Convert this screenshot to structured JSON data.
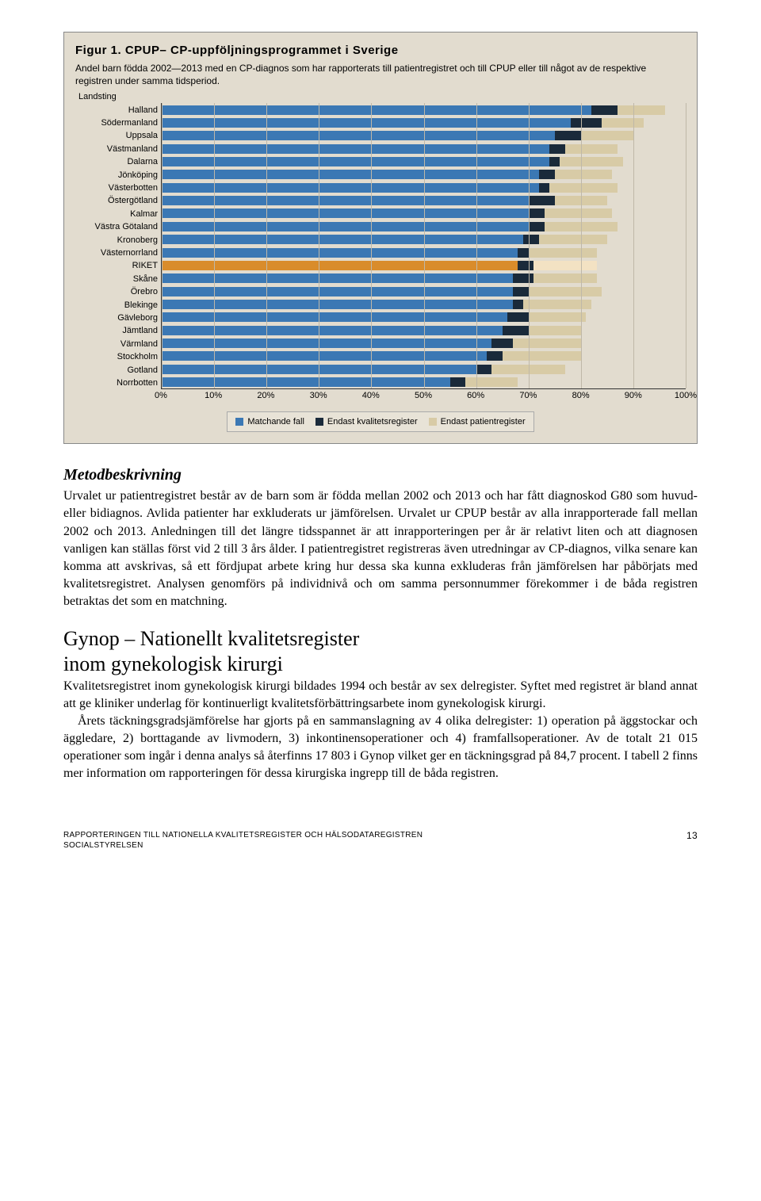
{
  "figure": {
    "title": "Figur 1. CPUP– CP-uppföljningsprogrammet i Sverige",
    "subtitle": "Andel barn födda 2002—2013 med en CP-diagnos som har rapporterats till patientregistret och till CPUP eller till något av de respektive registren under samma tidsperiod.",
    "y_axis_title": "Landsting",
    "series_colors": {
      "matched": "#3b78b4",
      "quality_only": "#1a2a3a",
      "patient_only": "#d8cba6",
      "riket_matched": "#d98c2b",
      "riket_patient": "#f3e2c3"
    },
    "background": "#e2dccf",
    "grid_color": "#bfb8a8",
    "categories": [
      {
        "label": "Halland",
        "m": 82,
        "q": 5,
        "p": 9
      },
      {
        "label": "Södermanland",
        "m": 78,
        "q": 6,
        "p": 8
      },
      {
        "label": "Uppsala",
        "m": 75,
        "q": 5,
        "p": 10
      },
      {
        "label": "Västmanland",
        "m": 74,
        "q": 3,
        "p": 10
      },
      {
        "label": "Dalarna",
        "m": 74,
        "q": 2,
        "p": 12
      },
      {
        "label": "Jönköping",
        "m": 72,
        "q": 3,
        "p": 11
      },
      {
        "label": "Västerbotten",
        "m": 72,
        "q": 2,
        "p": 13
      },
      {
        "label": "Östergötland",
        "m": 70,
        "q": 5,
        "p": 10
      },
      {
        "label": "Kalmar",
        "m": 70,
        "q": 3,
        "p": 13
      },
      {
        "label": "Västra Götaland",
        "m": 70,
        "q": 3,
        "p": 14
      },
      {
        "label": "Kronoberg",
        "m": 69,
        "q": 3,
        "p": 13
      },
      {
        "label": "Västernorrland",
        "m": 68,
        "q": 2,
        "p": 13
      },
      {
        "label": "RIKET",
        "m": 68,
        "q": 3,
        "p": 12,
        "highlight": true
      },
      {
        "label": "Skåne",
        "m": 67,
        "q": 4,
        "p": 12
      },
      {
        "label": "Örebro",
        "m": 67,
        "q": 3,
        "p": 14
      },
      {
        "label": "Blekinge",
        "m": 67,
        "q": 2,
        "p": 13
      },
      {
        "label": "Gävleborg",
        "m": 66,
        "q": 4,
        "p": 11
      },
      {
        "label": "Jämtland",
        "m": 65,
        "q": 5,
        "p": 10
      },
      {
        "label": "Värmland",
        "m": 63,
        "q": 4,
        "p": 13
      },
      {
        "label": "Stockholm",
        "m": 62,
        "q": 3,
        "p": 15
      },
      {
        "label": "Gotland",
        "m": 60,
        "q": 3,
        "p": 14
      },
      {
        "label": "Norrbotten",
        "m": 55,
        "q": 3,
        "p": 10
      }
    ],
    "x_ticks": [
      "0%",
      "10%",
      "20%",
      "30%",
      "40%",
      "50%",
      "60%",
      "70%",
      "80%",
      "90%",
      "100%"
    ],
    "legend": {
      "matched": "Matchande fall",
      "quality_only": "Endast kvalitetsregister",
      "patient_only": "Endast patientregister"
    }
  },
  "section1": {
    "heading": "Metodbeskrivning",
    "para": "Urvalet ur patientregistret består av de barn som är födda mellan 2002 och 2013 och har fått diagnoskod G80 som huvud- eller bidiagnos. Avlida patienter har exkluderats ur jämförelsen. Urvalet ur CPUP består av alla inrapporterade fall mellan 2002 och 2013. Anledningen till det längre tidsspannet är att inrapporteringen per år är relativt liten och att diagnosen vanligen kan ställas först vid 2 till 3 års ålder. I patientregistret registreras även utredningar av CP-diagnos, vilka senare kan komma att avskrivas, så ett fördjupat arbete kring hur dessa ska kunna exkluderas från jämförelsen har påbörjats med kvalitetsregistret. Analysen genomförs på individnivå och om samma personnummer förekommer i de båda registren betraktas det som en matchning."
  },
  "section2": {
    "heading_line1": "Gynop – Nationellt kvalitetsregister",
    "heading_line2": "inom gynekologisk kirurgi",
    "para1": "Kvalitetsregistret inom gynekologisk kirurgi bildades 1994 och består av sex delregister. Syftet med registret är bland annat att ge kliniker underlag för kontinuerligt kvalitetsförbättringsarbete inom gynekologisk kirurgi.",
    "para2": "Årets täckningsgradsjämförelse har gjorts på en sammanslagning av 4 olika delregister: 1) operation på äggstockar och äggledare, 2) borttagande av livmodern, 3) inkontinensoperationer och 4) framfallsoperationer. Av de totalt 21 015 operationer som ingår i denna analys så återfinns 17 803 i Gynop vilket ger en täckningsgrad på 84,7 procent. I tabell 2 finns mer information om rapporteringen för dessa kirurgiska ingrepp till de båda registren."
  },
  "footer": {
    "line1": "RAPPORTERINGEN TILL NATIONELLA KVALITETSREGISTER OCH HÄLSODATAREGISTREN",
    "line2": "SOCIALSTYRELSEN",
    "page": "13"
  }
}
